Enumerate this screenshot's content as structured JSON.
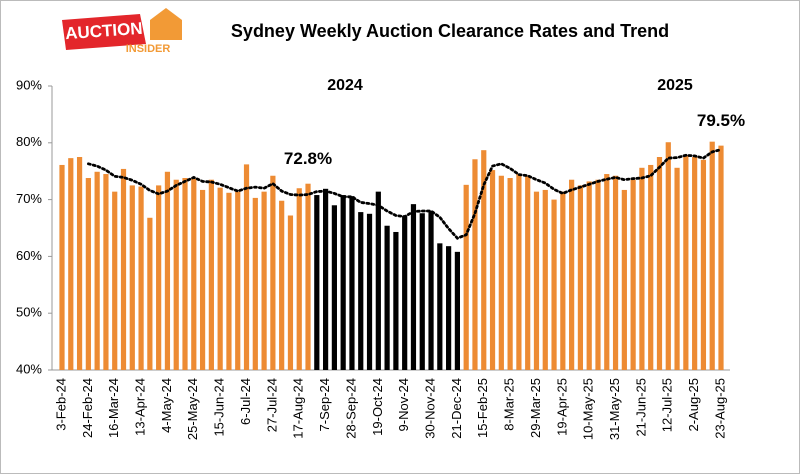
{
  "logo": {
    "top": "AUCTION",
    "bottom": "INSIDER"
  },
  "chart_data": {
    "type": "bar",
    "title": "Sydney Weekly Auction Clearance Rates and Trend",
    "categories": [
      "3-Feb-24",
      null,
      null,
      "24-Feb-24",
      null,
      null,
      "16-Mar-24",
      null,
      null,
      "13-Apr-24",
      null,
      null,
      "4-May-24",
      null,
      null,
      "25-May-24",
      null,
      null,
      "15-Jun-24",
      null,
      null,
      "6-Jul-24",
      null,
      null,
      "27-Jul-24",
      null,
      null,
      "17-Aug-24",
      null,
      null,
      "7-Sep-24",
      null,
      null,
      "28-Sep-24",
      null,
      null,
      "19-Oct-24",
      null,
      null,
      "9-Nov-24",
      null,
      null,
      "30-Nov-24",
      null,
      null,
      "21-Dec-24",
      null,
      null,
      "15-Feb-25",
      null,
      null,
      "8-Mar-25",
      null,
      null,
      "29-Mar-25",
      null,
      null,
      "19-Apr-25",
      null,
      null,
      "10-May-25",
      null,
      null,
      "31-May-25",
      null,
      null,
      "21-Jun-25",
      null,
      null,
      "12-Jul-25",
      null,
      null,
      "2-Aug-25",
      null,
      null,
      "23-Aug-25"
    ],
    "values": [
      76.1,
      77.3,
      77.5,
      73.8,
      74.9,
      74.5,
      71.4,
      75.4,
      72.5,
      72.3,
      66.8,
      72.5,
      74.9,
      73.5,
      73.8,
      73.7,
      71.7,
      73.5,
      72.1,
      71.2,
      71.4,
      76.2,
      70.3,
      71.4,
      74.2,
      69.8,
      67.2,
      72.0,
      72.8,
      70.8,
      71.9,
      69.0,
      70.8,
      70.6,
      67.8,
      67.5,
      71.4,
      65.4,
      64.3,
      67.1,
      69.2,
      67.6,
      68.0,
      62.3,
      61.8,
      60.8,
      72.6,
      77.1,
      78.7,
      75.2,
      74.2,
      73.8,
      74.5,
      74.2,
      71.4,
      71.7,
      70.0,
      71.4,
      73.5,
      72.5,
      73.2,
      73.5,
      74.5,
      74.2,
      71.7,
      73.5,
      75.6,
      76.1,
      77.5,
      80.1,
      75.6,
      77.8,
      77.5,
      77.0,
      80.2,
      79.5
    ],
    "value_labels": [
      null,
      null,
      null,
      null,
      null,
      null,
      null,
      null,
      null,
      null,
      null,
      null,
      null,
      null,
      null,
      null,
      null,
      null,
      null,
      null,
      null,
      null,
      null,
      null,
      null,
      null,
      null,
      null,
      "72.8%",
      null,
      null,
      null,
      null,
      null,
      null,
      null,
      null,
      null,
      null,
      null,
      null,
      null,
      null,
      null,
      null,
      null,
      null,
      null,
      null,
      null,
      null,
      null,
      null,
      null,
      null,
      null,
      null,
      null,
      null,
      null,
      null,
      null,
      null,
      null,
      null,
      null,
      null,
      null,
      null,
      null,
      null,
      null,
      null,
      null,
      null,
      "79.5%"
    ],
    "colors": [
      "#ed8b33",
      "#ed8b33",
      "#ed8b33",
      "#ed8b33",
      "#ed8b33",
      "#ed8b33",
      "#ed8b33",
      "#ed8b33",
      "#ed8b33",
      "#ed8b33",
      "#ed8b33",
      "#ed8b33",
      "#ed8b33",
      "#ed8b33",
      "#ed8b33",
      "#ed8b33",
      "#ed8b33",
      "#ed8b33",
      "#ed8b33",
      "#ed8b33",
      "#ed8b33",
      "#ed8b33",
      "#ed8b33",
      "#ed8b33",
      "#ed8b33",
      "#ed8b33",
      "#ed8b33",
      "#ed8b33",
      "#ed8b33",
      "#000000",
      "#000000",
      "#000000",
      "#000000",
      "#000000",
      "#000000",
      "#000000",
      "#000000",
      "#000000",
      "#000000",
      "#000000",
      "#000000",
      "#000000",
      "#000000",
      "#000000",
      "#000000",
      "#000000",
      "#ed8b33",
      "#ed8b33",
      "#ed8b33",
      "#ed8b33",
      "#ed8b33",
      "#ed8b33",
      "#ed8b33",
      "#ed8b33",
      "#ed8b33",
      "#ed8b33",
      "#ed8b33",
      "#ed8b33",
      "#ed8b33",
      "#ed8b33",
      "#ed8b33",
      "#ed8b33",
      "#ed8b33",
      "#ed8b33",
      "#ed8b33",
      "#ed8b33",
      "#ed8b33",
      "#ed8b33",
      "#ed8b33",
      "#ed8b33",
      "#ed8b33",
      "#ed8b33",
      "#ed8b33",
      "#ed8b33",
      "#ed8b33",
      "#ed8b33"
    ],
    "trend": {
      "type": "line",
      "color": "#000000",
      "style": "dotted",
      "values": [
        null,
        null,
        null,
        76.3,
        75.9,
        75.2,
        74.1,
        73.9,
        73.4,
        72.7,
        71.6,
        71.0,
        71.5,
        72.5,
        73.2,
        73.9,
        73.2,
        73.1,
        72.7,
        72.1,
        71.5,
        72.0,
        72.2,
        72.0,
        72.8,
        71.5,
        70.9,
        70.8,
        70.9,
        71.4,
        71.5,
        71.1,
        70.5,
        70.5,
        69.5,
        69.3,
        69.0,
        68.0,
        67.2,
        67.0,
        67.9,
        68.0,
        68.0,
        66.9,
        64.9,
        63.2,
        63.8,
        67.6,
        72.6,
        75.9,
        76.3,
        75.5,
        74.4,
        74.2,
        73.5,
        72.9,
        71.8,
        71.1,
        71.7,
        72.2,
        72.7,
        73.2,
        73.6,
        73.9,
        73.5,
        73.7,
        73.8,
        74.2,
        75.7,
        77.3,
        77.4,
        77.8,
        77.7,
        77.3,
        78.4,
        78.8
      ]
    },
    "annotations": [
      "2024",
      "2025"
    ],
    "ylim": [
      40,
      90
    ],
    "yticks": [
      {
        "value": 40,
        "label": "40%"
      },
      {
        "value": 50,
        "label": "50%"
      },
      {
        "value": 60,
        "label": "60%"
      },
      {
        "value": 70,
        "label": "70%"
      },
      {
        "value": 80,
        "label": "80%"
      },
      {
        "value": 90,
        "label": "90%"
      }
    ],
    "grid": false
  }
}
